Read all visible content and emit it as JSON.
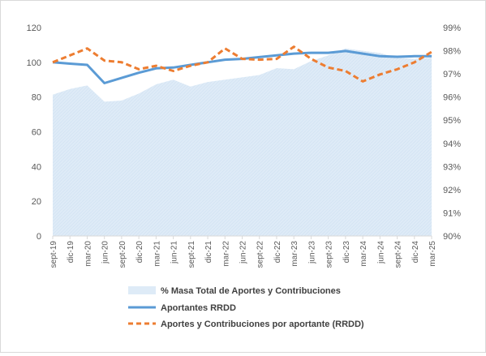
{
  "chart_data": {
    "type": "line",
    "left_axis": {
      "min": 0,
      "max": 120,
      "ticks": [
        "0",
        "20",
        "40",
        "60",
        "80",
        "100",
        "120"
      ]
    },
    "right_axis": {
      "min": 90,
      "max": 99,
      "ticks": [
        "90%",
        "91%",
        "92%",
        "93%",
        "94%",
        "95%",
        "96%",
        "97%",
        "98%",
        "99%"
      ]
    },
    "categories": [
      "sept-19",
      "dic-19",
      "mar-20",
      "jun-20",
      "sept-20",
      "dic-20",
      "mar-21",
      "jun-21",
      "sept-21",
      "dic-21",
      "mar-22",
      "jun-22",
      "sept-22",
      "dic-22",
      "mar-23",
      "jun-23",
      "sept-23",
      "dic-23",
      "mar-24",
      "jun-24",
      "sept-24",
      "dic-24",
      "mar-25"
    ],
    "series": [
      {
        "name": "% Masa Total de Aportes y Contribuciones",
        "kind": "area",
        "axis": "right",
        "color": "#deebf7",
        "values": [
          96.1,
          96.35,
          96.5,
          95.8,
          95.85,
          96.15,
          96.55,
          96.75,
          96.45,
          96.65,
          96.75,
          96.85,
          96.95,
          97.25,
          97.2,
          97.55,
          97.8,
          98.1,
          98.0,
          97.9,
          97.7,
          97.65,
          97.7
        ]
      },
      {
        "name": "Aportantes RRDD",
        "kind": "line",
        "axis": "left",
        "color": "#5b9bd5",
        "values": [
          100,
          99.2,
          98.5,
          88,
          91,
          94,
          96.5,
          97,
          98.5,
          100,
          101.5,
          102,
          103,
          104,
          105,
          105.5,
          105.5,
          106.5,
          105,
          103.5,
          103.2,
          103.5,
          103.5
        ]
      },
      {
        "name": "Aportes y Contribuciones por aportante (RRDD)",
        "kind": "dashed-line",
        "axis": "left",
        "color": "#ed7d31",
        "values": [
          100,
          104,
          108,
          101,
          100,
          96,
          98,
          95,
          98,
          100,
          108,
          102,
          101.5,
          102,
          109,
          102,
          97,
          95,
          89,
          93,
          96,
          100,
          106
        ]
      }
    ],
    "grid": false,
    "legend_position": "bottom"
  }
}
